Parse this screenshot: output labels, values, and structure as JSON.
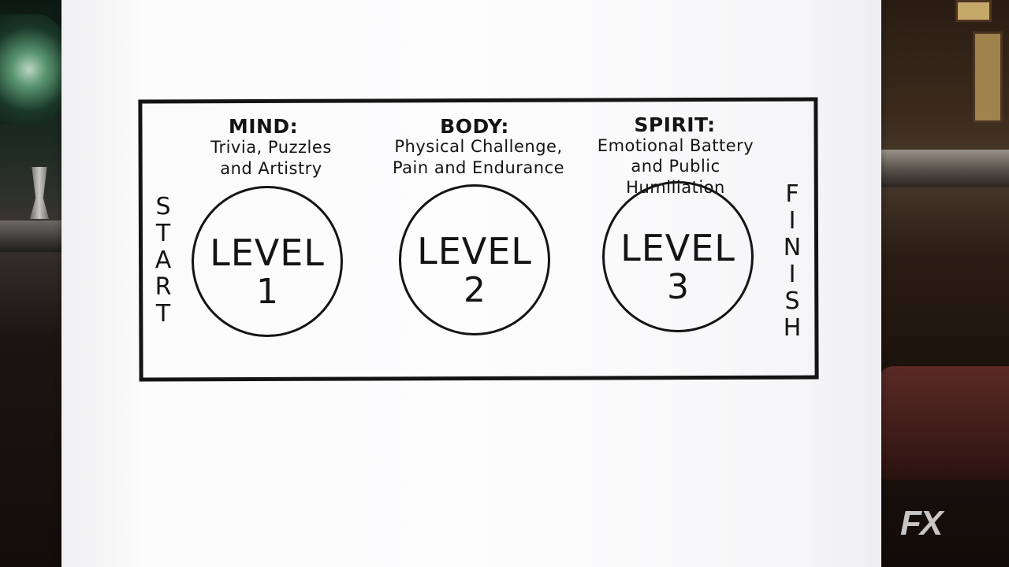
{
  "diagram": {
    "start_label": "START",
    "finish_label": "FINISH",
    "categories": [
      {
        "title": "MIND:",
        "line1": "Trivia, Puzzles",
        "line2": "and Artistry",
        "level_word": "LEVEL",
        "level_number": "1"
      },
      {
        "title": "BODY:",
        "line1": "Physical Challenge,",
        "line2": "Pain and Endurance",
        "level_word": "LEVEL",
        "level_number": "2"
      },
      {
        "title": "SPIRIT:",
        "line1": "Emotional Battery",
        "line2": "and Public Humiliation",
        "level_word": "LEVEL",
        "level_number": "3"
      }
    ]
  },
  "watermark": {
    "text": "FX"
  },
  "colors": {
    "ink": "#141414",
    "paper": "#fdfdfe"
  }
}
